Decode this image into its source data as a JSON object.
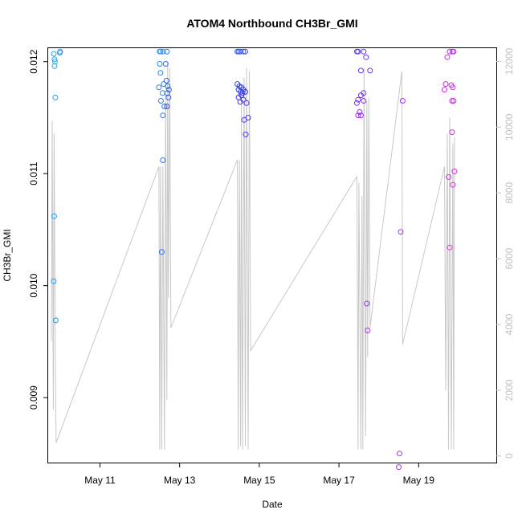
{
  "chart_data": {
    "type": "scatter",
    "title": "ATOM4 Northbound CH3Br_GMI",
    "xlabel": "Date",
    "ylabel": "CH3Br_GMI",
    "x_ticks": [
      {
        "day": 11,
        "label": "May 11"
      },
      {
        "day": 13,
        "label": "May 13"
      },
      {
        "day": 15,
        "label": "May 15"
      },
      {
        "day": 17,
        "label": "May 17"
      },
      {
        "day": 19,
        "label": "May 19"
      }
    ],
    "xlim": [
      9.7,
      20.95
    ],
    "ylim_left": [
      0.00842,
      0.01212
    ],
    "ylim_right": [
      -200,
      12400
    ],
    "y_ticks_left": [
      {
        "value": 0.009,
        "label": "0.009"
      },
      {
        "value": 0.01,
        "label": "0.010"
      },
      {
        "value": 0.011,
        "label": "0.011"
      },
      {
        "value": 0.012,
        "label": "0.012"
      }
    ],
    "y_ticks_right": [
      {
        "value": 0,
        "label": "0"
      },
      {
        "value": 2000,
        "label": "2000"
      },
      {
        "value": 4000,
        "label": "4000"
      },
      {
        "value": 6000,
        "label": "6000"
      },
      {
        "value": 8000,
        "label": "8000"
      },
      {
        "value": 10000,
        "label": "10000"
      },
      {
        "value": 12000,
        "label": "12000"
      }
    ],
    "colors": {
      "axis": "#000000",
      "altitude_line": "#c8c8c8",
      "right_axis": "#c0c0c0",
      "gradient_start": "#1eb0ee",
      "gradient_mid": "#3535f0",
      "gradient_end": "#e830e0"
    },
    "series": [
      {
        "name": "CH3Br_GMI",
        "axis": "left",
        "points": [
          [
            9.84,
            0.01207
          ],
          [
            9.86,
            0.01202
          ],
          [
            9.87,
            0.012
          ],
          [
            9.86,
            0.01196
          ],
          [
            9.88,
            0.01168
          ],
          [
            9.85,
            0.01062
          ],
          [
            9.84,
            0.01004
          ],
          [
            9.89,
            0.00969
          ],
          [
            10.0,
            0.01209
          ],
          [
            9.99,
            0.01208
          ],
          [
            12.5,
            0.01209
          ],
          [
            12.52,
            0.01209
          ],
          [
            12.58,
            0.01209
          ],
          [
            12.5,
            0.01198
          ],
          [
            12.52,
            0.0119
          ],
          [
            12.48,
            0.01177
          ],
          [
            12.6,
            0.0118
          ],
          [
            12.57,
            0.01172
          ],
          [
            12.53,
            0.01165
          ],
          [
            12.62,
            0.0116
          ],
          [
            12.58,
            0.01152
          ],
          [
            12.58,
            0.01112
          ],
          [
            12.55,
            0.0103
          ],
          [
            12.68,
            0.01209
          ],
          [
            12.65,
            0.01198
          ],
          [
            12.67,
            0.01183
          ],
          [
            12.7,
            0.01178
          ],
          [
            12.73,
            0.01175
          ],
          [
            12.69,
            0.01172
          ],
          [
            12.72,
            0.01168
          ],
          [
            12.68,
            0.0116
          ],
          [
            14.45,
            0.01209
          ],
          [
            14.48,
            0.01209
          ],
          [
            14.52,
            0.01209
          ],
          [
            14.6,
            0.01209
          ],
          [
            14.65,
            0.01209
          ],
          [
            14.45,
            0.0118
          ],
          [
            14.5,
            0.01178
          ],
          [
            14.55,
            0.01177
          ],
          [
            14.48,
            0.01175
          ],
          [
            14.53,
            0.01173
          ],
          [
            14.6,
            0.01175
          ],
          [
            14.58,
            0.01172
          ],
          [
            14.65,
            0.01173
          ],
          [
            14.55,
            0.0117
          ],
          [
            14.48,
            0.01168
          ],
          [
            14.6,
            0.01166
          ],
          [
            14.52,
            0.01164
          ],
          [
            14.68,
            0.01163
          ],
          [
            14.62,
            0.01148
          ],
          [
            14.72,
            0.0115
          ],
          [
            14.66,
            0.01135
          ],
          [
            17.45,
            0.01209
          ],
          [
            17.48,
            0.01209
          ],
          [
            17.62,
            0.01209
          ],
          [
            17.68,
            0.01204
          ],
          [
            17.55,
            0.01192
          ],
          [
            17.78,
            0.01192
          ],
          [
            17.62,
            0.01172
          ],
          [
            17.55,
            0.0117
          ],
          [
            17.48,
            0.01166
          ],
          [
            17.62,
            0.01165
          ],
          [
            17.45,
            0.01163
          ],
          [
            17.52,
            0.01155
          ],
          [
            17.48,
            0.01152
          ],
          [
            17.55,
            0.01152
          ],
          [
            17.7,
            0.00984
          ],
          [
            17.72,
            0.0096
          ],
          [
            18.6,
            0.01165
          ],
          [
            18.55,
            0.01048
          ],
          [
            18.52,
            0.0085
          ],
          [
            18.5,
            0.00838
          ],
          [
            19.78,
            0.01209
          ],
          [
            19.85,
            0.01209
          ],
          [
            19.88,
            0.01209
          ],
          [
            19.72,
            0.01204
          ],
          [
            19.68,
            0.0118
          ],
          [
            19.82,
            0.01179
          ],
          [
            19.86,
            0.01177
          ],
          [
            19.65,
            0.01175
          ],
          [
            19.84,
            0.01165
          ],
          [
            19.88,
            0.01165
          ],
          [
            19.84,
            0.01137
          ],
          [
            19.75,
            0.01097
          ],
          [
            19.9,
            0.01102
          ],
          [
            19.86,
            0.0109
          ],
          [
            19.78,
            0.01034
          ]
        ]
      },
      {
        "name": "Altitude",
        "axis": "right",
        "points": [
          [
            9.78,
            3500
          ],
          [
            9.8,
            10200
          ],
          [
            9.83,
            1400
          ],
          [
            9.85,
            9800
          ],
          [
            9.88,
            2800
          ],
          [
            9.9,
            400
          ],
          [
            12.48,
            8800
          ],
          [
            12.5,
            200
          ],
          [
            12.52,
            8800
          ],
          [
            12.55,
            200
          ],
          [
            12.58,
            8800
          ],
          [
            12.62,
            200
          ],
          [
            12.65,
            11000
          ],
          [
            12.68,
            1700
          ],
          [
            12.7,
            12000
          ],
          [
            12.72,
            4800
          ],
          [
            12.75,
            11800
          ],
          [
            12.78,
            3900
          ],
          [
            14.45,
            9000
          ],
          [
            14.47,
            200
          ],
          [
            14.5,
            9000
          ],
          [
            14.53,
            300
          ],
          [
            14.55,
            10800
          ],
          [
            14.58,
            200
          ],
          [
            14.62,
            11500
          ],
          [
            14.65,
            300
          ],
          [
            14.68,
            11800
          ],
          [
            14.72,
            200
          ],
          [
            14.75,
            11700
          ],
          [
            14.78,
            3200
          ],
          [
            17.45,
            8500
          ],
          [
            17.48,
            200
          ],
          [
            17.5,
            8300
          ],
          [
            17.55,
            200
          ],
          [
            17.58,
            7900
          ],
          [
            17.6,
            200
          ],
          [
            17.63,
            11800
          ],
          [
            17.67,
            600
          ],
          [
            17.7,
            10800
          ],
          [
            17.72,
            3000
          ],
          [
            17.75,
            10900
          ],
          [
            17.78,
            3900
          ],
          [
            18.58,
            11700
          ],
          [
            18.6,
            3400
          ],
          [
            19.65,
            8800
          ],
          [
            19.68,
            2000
          ],
          [
            19.72,
            9800
          ],
          [
            19.75,
            200
          ],
          [
            19.78,
            10300
          ],
          [
            19.82,
            200
          ],
          [
            19.86,
            9500
          ],
          [
            19.88,
            200
          ],
          [
            19.9,
            9700
          ]
        ]
      }
    ]
  }
}
